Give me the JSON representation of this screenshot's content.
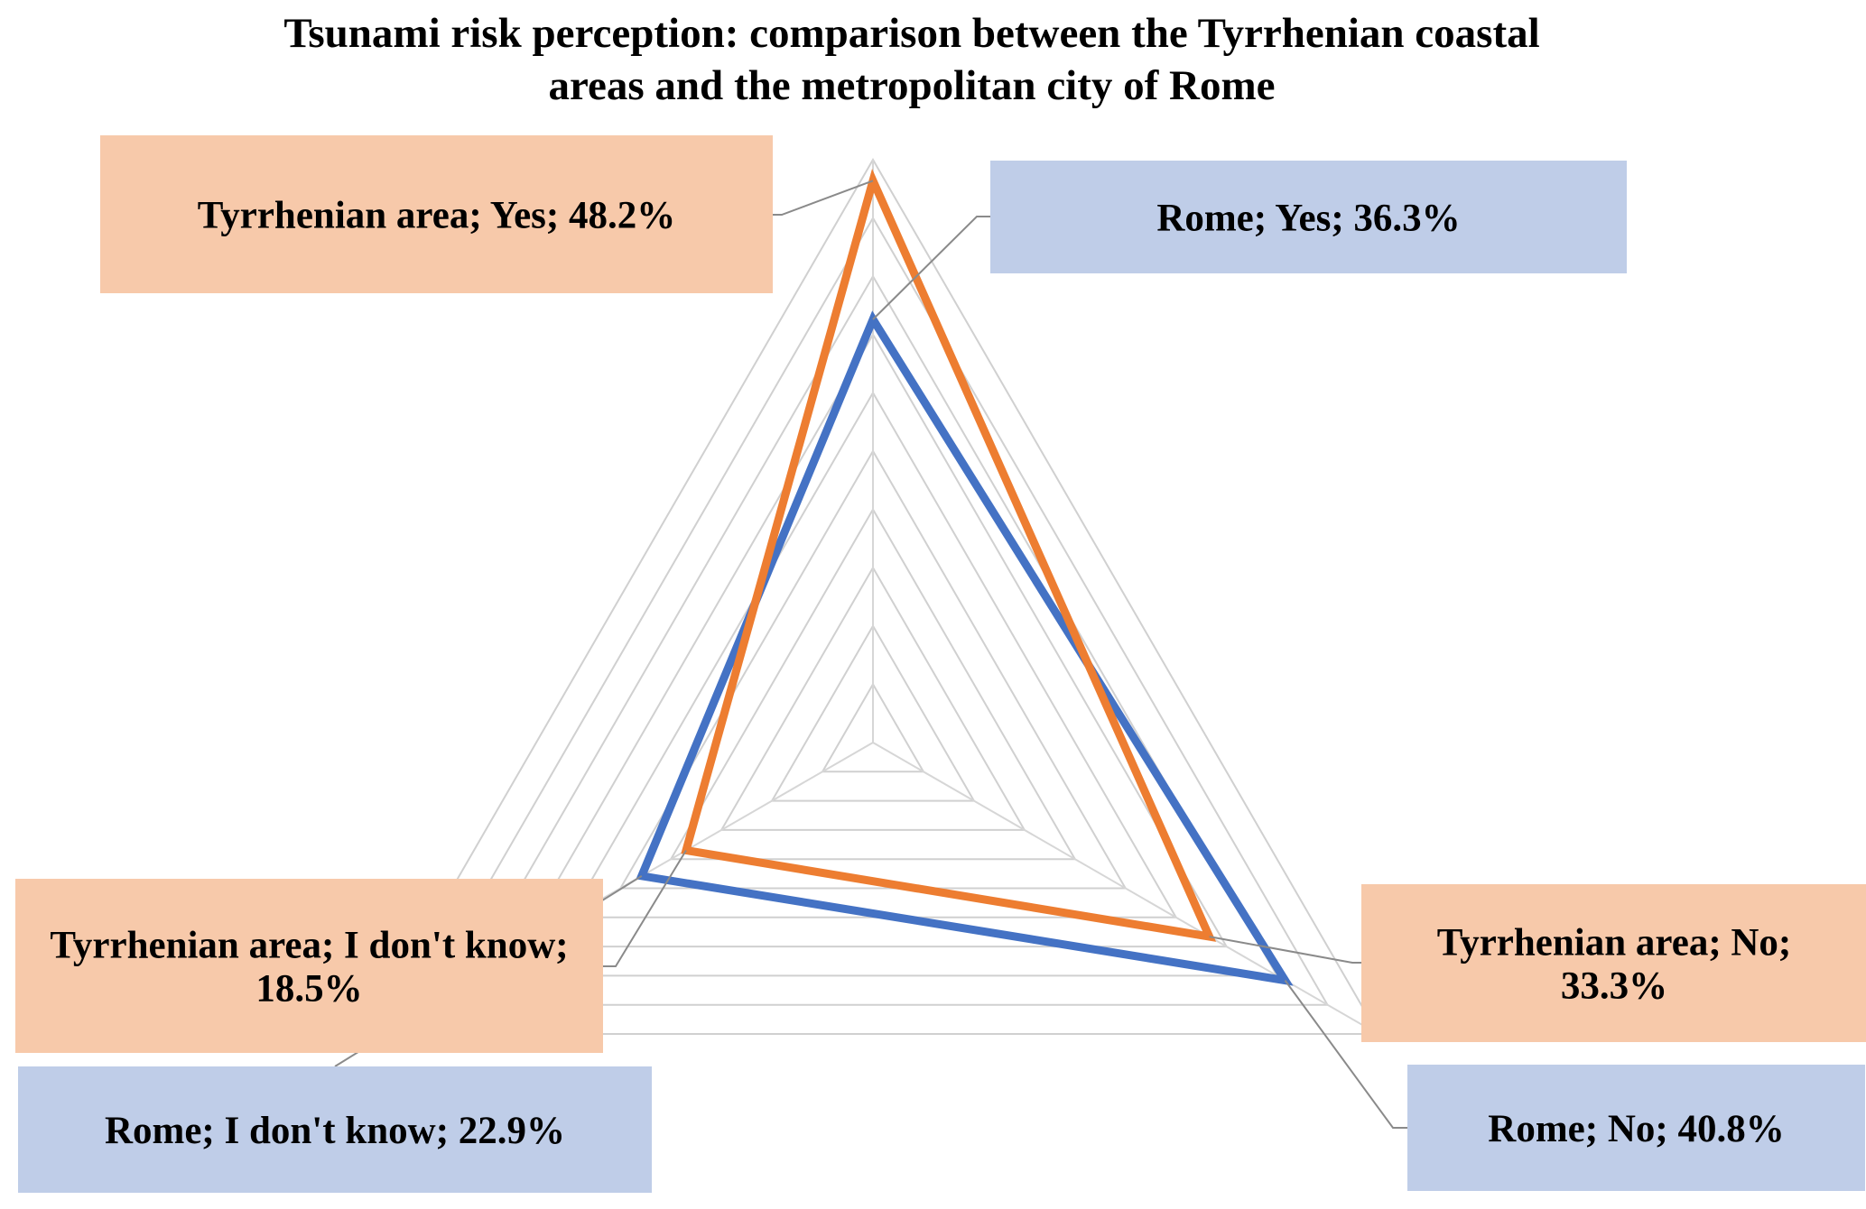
{
  "chart_data": {
    "type": "radar",
    "title": "Tsunami risk perception: comparison between the Tyrrhenian coastal areas and the metropolitan city of Rome",
    "title_lines": [
      "Tsunami risk perception: comparison between the Tyrrhenian coastal",
      "areas and the metropolitan city of Rome"
    ],
    "categories": [
      "Yes",
      "No",
      "I don't know"
    ],
    "unit": "%",
    "rlim": [
      0,
      50
    ],
    "r_step": 5,
    "grid": true,
    "legend": "none",
    "series": [
      {
        "name": "Rome",
        "color": "#4472c4",
        "label_bg": "#bfcde8",
        "values": [
          36.3,
          40.8,
          22.9
        ],
        "data_labels": [
          [
            "Rome; Yes; 36.3%"
          ],
          [
            "Rome; No; 40.8%"
          ],
          [
            "Rome; I don't know; 22.9%"
          ]
        ]
      },
      {
        "name": "Tyrrhenian area",
        "color": "#ed7d31",
        "label_bg": "#f7c9aa",
        "values": [
          48.2,
          33.3,
          18.5
        ],
        "data_labels": [
          [
            "Tyrrhenian area; Yes; 48.2%"
          ],
          [
            "Tyrrhenian area; No;",
            "33.3%"
          ],
          [
            "Tyrrhenian area; I don't know;",
            "18.5%"
          ]
        ]
      }
    ]
  }
}
